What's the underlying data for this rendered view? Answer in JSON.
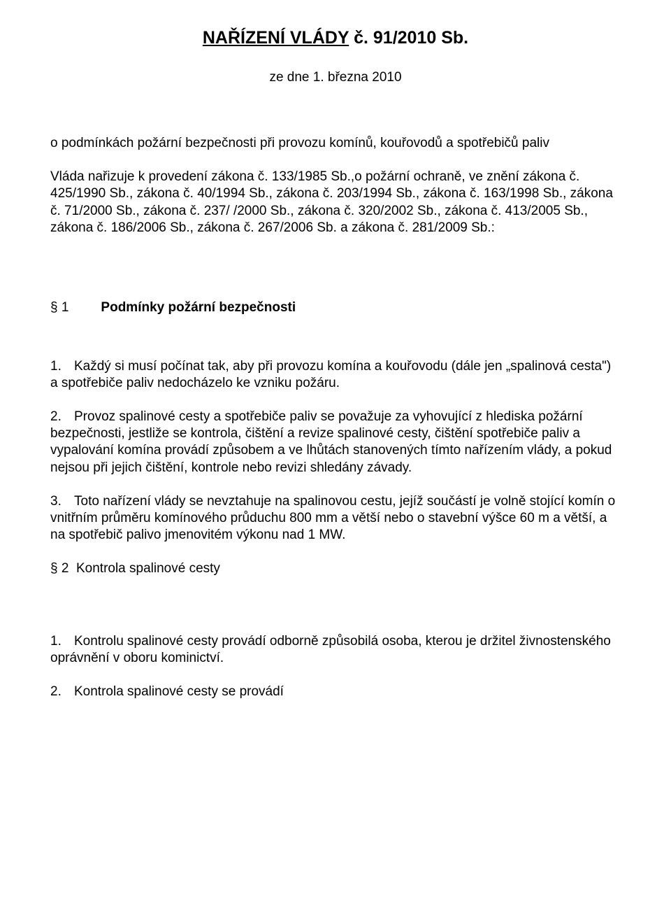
{
  "title_main": "NAŘÍZENÍ VLÁDY",
  "title_suffix": "  č. 91/2010 Sb.",
  "date_line": "ze dne 1. března 2010",
  "intro_p1": "o podmínkách požární bezpečnosti při provozu komínů, kouřovodů a spotřebičů paliv",
  "intro_p2": "Vláda nařizuje k provedení zákona č. 133/1985 Sb.,o požární ochraně, ve znění zákona č. 425/1990 Sb., zákona č. 40/1994 Sb., zákona č. 203/1994 Sb., zákona č. 163/1998 Sb., zákona č. 71/2000 Sb., zákona č. 237/ /2000 Sb., zákona č. 320/2002 Sb., zákona č. 413/2005 Sb., zákona č. 186/2006 Sb., zákona č. 267/2006 Sb. a zákona č. 281/2009 Sb.:",
  "s1_mark": "§ 1",
  "s1_title": "Podmínky požární bezpečnosti",
  "s1_items": [
    {
      "num": "1.",
      "text": "Každý si musí počínat tak, aby při provozu komína a kouřovodu (dále jen „spalinová cesta\") a spotřebiče paliv nedocházelo ke vzniku požáru."
    },
    {
      "num": "2.",
      "text": "Provoz spalinové cesty a spotřebiče paliv se považuje za vyhovující z hlediska požární bezpečnosti, jestliže se kontrola, čištění a revize spalinové cesty, čištění spotřebiče paliv a vypalování komína provádí způsobem a ve lhůtách stanovených tímto nařízením vlády, a pokud nejsou při jejich čištění, kontrole nebo revizi shledány závady."
    },
    {
      "num": "3.",
      "text": "Toto nařízení vlády se nevztahuje na spalinovou cestu, jejíž součástí je volně stojící komín o vnitřním průměru komínového průduchu 800 mm a větší nebo o stavební výšce 60 m a větší, a na spotřebič palivo jmenovitém výkonu nad 1 MW."
    }
  ],
  "s2_mark": "§ 2",
  "s2_title": "Kontrola spalinové cesty",
  "s2_items": [
    {
      "num": "1.",
      "text": "Kontrolu spalinové cesty provádí odborně způsobilá osoba, kterou je držitel živnostenského oprávnění v oboru kominictví."
    },
    {
      "num": "2.",
      "text": "Kontrola spalinové cesty se provádí"
    }
  ]
}
